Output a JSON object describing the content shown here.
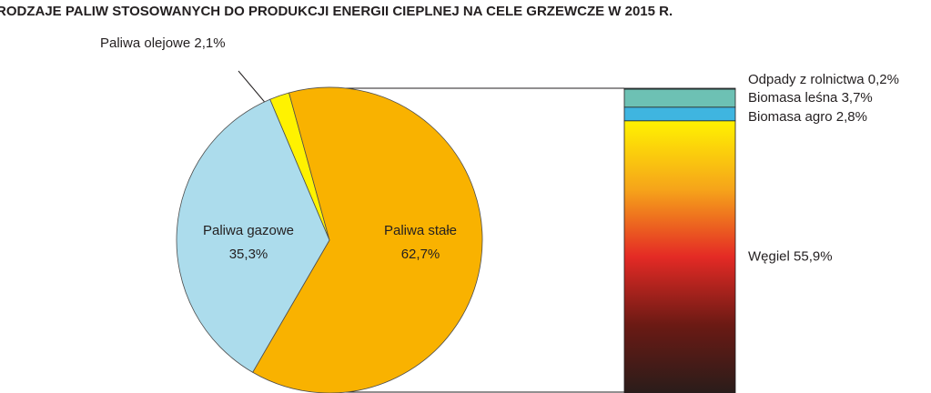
{
  "chart_data": [
    {
      "type": "pie",
      "title": "RODZAJE PALIW STOSOWANYCH DO PRODUKCJI ENERGII CIEPLNEJ NA CELE GRZEWCZE W 2015 R.",
      "categories": [
        "Paliwa olejowe",
        "Paliwa stałe",
        "Paliwa gazowe"
      ],
      "values": [
        2.1,
        62.7,
        35.3
      ],
      "value_labels": [
        "2,1%",
        "62,7%",
        "35,3%"
      ],
      "colors": [
        "#fff200",
        "#f9b200",
        "#acdcec"
      ]
    },
    {
      "type": "stacked-bar",
      "categories": [
        "Odpady z rolnictwa",
        "Biomasa leśna",
        "Biomasa agro",
        "Węgiel"
      ],
      "values": [
        0.2,
        3.7,
        2.8,
        55.9
      ],
      "value_labels": [
        "0,2%",
        "3,7%",
        "2,8%",
        "55,9%"
      ],
      "colors": [
        "#3aa99f",
        "#6dc1b4",
        "#3fb5e0",
        "#fff200"
      ],
      "gradient": [
        "#fff200",
        "#f6a51a",
        "#e42a25",
        "#6b1a14",
        "#2a1c1a"
      ]
    }
  ]
}
